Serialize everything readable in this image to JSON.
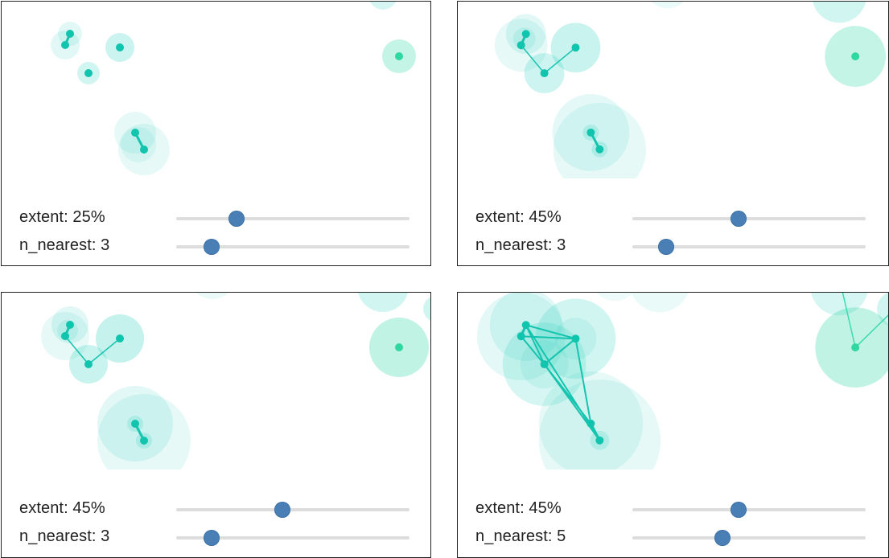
{
  "panels": [
    {
      "extent": {
        "label": "extent: ",
        "value": "25%",
        "fraction": 0.26
      },
      "n_nearest": {
        "label": "n_nearest: ",
        "value": "3",
        "fraction": 0.15
      },
      "color_main": "#2fd0bf",
      "color_right": "#3ddbaa"
    },
    {
      "extent": {
        "label": "extent: ",
        "value": "45%",
        "fraction": 0.455
      },
      "n_nearest": {
        "label": "n_nearest: ",
        "value": "3",
        "fraction": 0.145
      },
      "color_main": "#2fd0bf",
      "color_right": "#3ddbaa"
    },
    {
      "extent": {
        "label": "extent: ",
        "value": "45%",
        "fraction": 0.455
      },
      "n_nearest": {
        "label": "n_nearest: ",
        "value": "3",
        "fraction": 0.15
      },
      "color_main": "#2fd0bf",
      "color_right": "#3ddbaa"
    },
    {
      "extent": {
        "label": "extent: ",
        "value": "45%",
        "fraction": 0.455
      },
      "n_nearest": {
        "label": "n_nearest: ",
        "value": "5",
        "fraction": 0.385
      },
      "color_main": "#2fd0bf",
      "color_right": "#3ddbaa"
    }
  ]
}
